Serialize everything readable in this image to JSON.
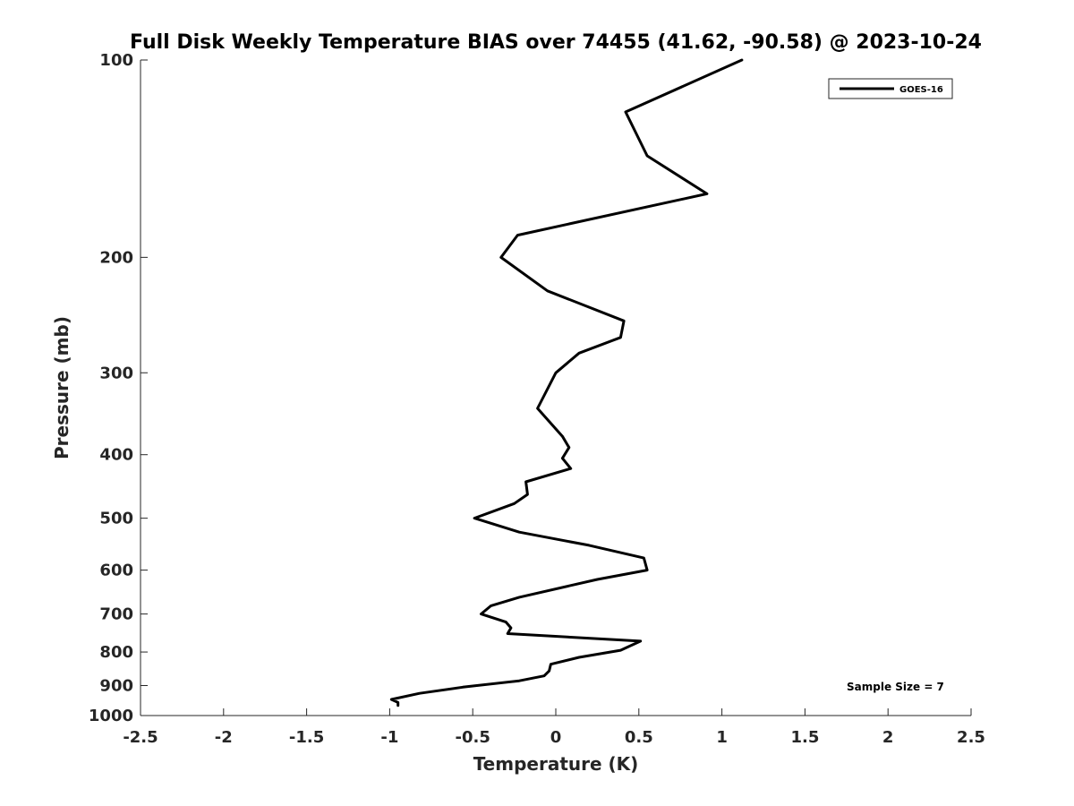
{
  "chart_data": {
    "type": "line",
    "title": "Full Disk Weekly Temperature BIAS over 74455 (41.62, -90.58) @ 2023-10-24",
    "xlabel": "Temperature (K)",
    "ylabel": "Pressure (mb)",
    "xlim": [
      -2.5,
      2.5
    ],
    "ylim": [
      100,
      1000
    ],
    "y_scale": "log",
    "y_reversed": true,
    "x_ticks": [
      "-2.5",
      "-2",
      "-1.5",
      "-1",
      "-0.5",
      "0",
      "0.5",
      "1",
      "1.5",
      "2",
      "2.5"
    ],
    "y_ticks": [
      "100",
      "200",
      "300",
      "400",
      "500",
      "600",
      "700",
      "800",
      "900",
      "1000"
    ],
    "grid": false,
    "legend": {
      "placement": "top-right",
      "entries": [
        "GOES-16"
      ]
    },
    "annotation": "Sample Size = 7",
    "series": [
      {
        "name": "GOES-16",
        "color": "#000000",
        "points": [
          {
            "x": 1.12,
            "y": 100
          },
          {
            "x": 0.42,
            "y": 120
          },
          {
            "x": 0.55,
            "y": 140
          },
          {
            "x": 0.91,
            "y": 160
          },
          {
            "x": -0.23,
            "y": 185
          },
          {
            "x": -0.33,
            "y": 200
          },
          {
            "x": -0.05,
            "y": 225
          },
          {
            "x": 0.41,
            "y": 250
          },
          {
            "x": 0.39,
            "y": 265
          },
          {
            "x": 0.14,
            "y": 280
          },
          {
            "x": 0.0,
            "y": 300
          },
          {
            "x": -0.11,
            "y": 340
          },
          {
            "x": 0.04,
            "y": 375
          },
          {
            "x": 0.08,
            "y": 390
          },
          {
            "x": 0.04,
            "y": 405
          },
          {
            "x": 0.09,
            "y": 420
          },
          {
            "x": -0.18,
            "y": 440
          },
          {
            "x": -0.17,
            "y": 460
          },
          {
            "x": -0.25,
            "y": 475
          },
          {
            "x": -0.49,
            "y": 500
          },
          {
            "x": -0.22,
            "y": 525
          },
          {
            "x": 0.2,
            "y": 550
          },
          {
            "x": 0.53,
            "y": 575
          },
          {
            "x": 0.55,
            "y": 600
          },
          {
            "x": 0.25,
            "y": 620
          },
          {
            "x": -0.22,
            "y": 660
          },
          {
            "x": -0.39,
            "y": 680
          },
          {
            "x": -0.45,
            "y": 700
          },
          {
            "x": -0.3,
            "y": 720
          },
          {
            "x": -0.27,
            "y": 735
          },
          {
            "x": -0.29,
            "y": 750
          },
          {
            "x": 0.51,
            "y": 770
          },
          {
            "x": 0.39,
            "y": 795
          },
          {
            "x": 0.14,
            "y": 815
          },
          {
            "x": -0.03,
            "y": 835
          },
          {
            "x": -0.04,
            "y": 855
          },
          {
            "x": -0.07,
            "y": 870
          },
          {
            "x": -0.22,
            "y": 885
          },
          {
            "x": -0.56,
            "y": 905
          },
          {
            "x": -0.82,
            "y": 925
          },
          {
            "x": -0.99,
            "y": 945
          },
          {
            "x": -0.95,
            "y": 955
          },
          {
            "x": -0.95,
            "y": 965
          }
        ]
      }
    ]
  }
}
